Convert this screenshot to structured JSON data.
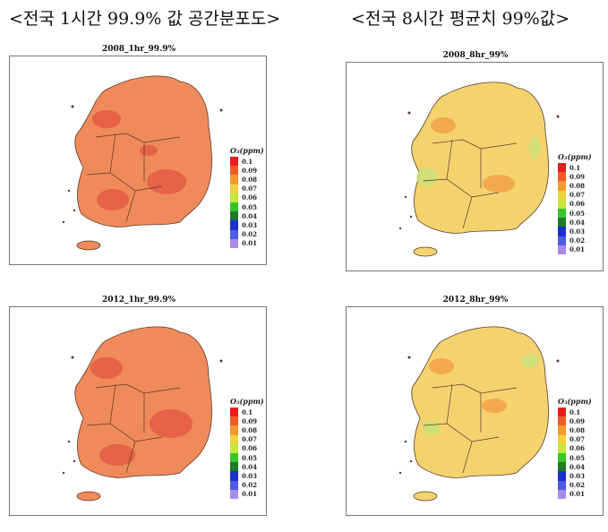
{
  "columns": {
    "left_title": "<전국 1시간 99.9% 값 공간분포도>",
    "right_title": "<전국 8시간 평균치 99%값>"
  },
  "panels": [
    {
      "title": "2008_1hr_99.9%",
      "scenario": "1hr-2008"
    },
    {
      "title": "2008_8hr_99%",
      "scenario": "8hr-2008"
    },
    {
      "title": "2012_1hr_99.9%",
      "scenario": "1hr-2012"
    },
    {
      "title": "2012_8hr_99%",
      "scenario": "8hr-2012"
    }
  ],
  "legend": {
    "title": "O₃(ppm)",
    "items": [
      {
        "label": "0.1",
        "color": "#e0201c"
      },
      {
        "label": "0.09",
        "color": "#f05a28"
      },
      {
        "label": "0.08",
        "color": "#f59a2e"
      },
      {
        "label": "0.07",
        "color": "#f2d43a"
      },
      {
        "label": "0.06",
        "color": "#c6e83a"
      },
      {
        "label": "0.05",
        "color": "#34c62a"
      },
      {
        "label": "0.04",
        "color": "#1f7a2a"
      },
      {
        "label": "0.03",
        "color": "#1c2fd0"
      },
      {
        "label": "0.02",
        "color": "#4d5ce6"
      },
      {
        "label": "0.01",
        "color": "#a98be8"
      }
    ]
  },
  "map_style": {
    "land_1hr": "#ef8a5a",
    "land_8hr": "#f4d36f",
    "hotspot_1hr": "#e45a45",
    "hotspot_8hr": "#f2a24a",
    "cool_8hr": "#c9e07a",
    "boundary": "#5a3a2a"
  }
}
